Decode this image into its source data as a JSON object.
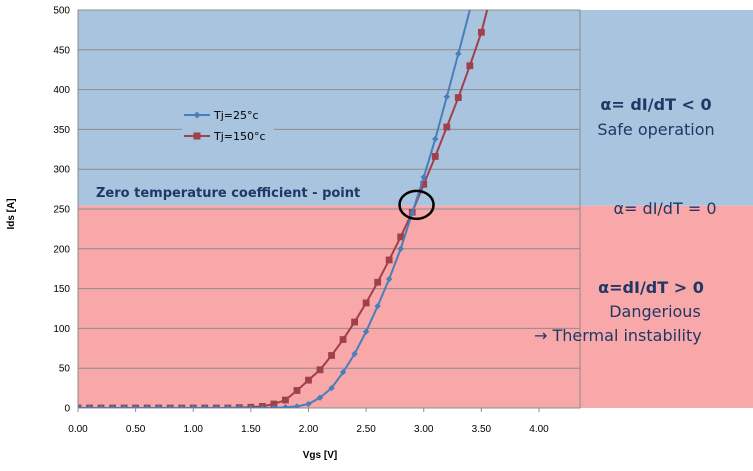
{
  "chart_data": {
    "type": "line",
    "xlabel": "Vgs [V]",
    "ylabel": "Ids [A]",
    "xlim": [
      0,
      4
    ],
    "ylim": [
      0,
      500
    ],
    "x_ticks": [
      "0.00",
      "0.50",
      "1.00",
      "1.50",
      "2.00",
      "2.50",
      "3.00",
      "3.50",
      "4.00"
    ],
    "y_ticks": [
      "0",
      "50",
      "100",
      "150",
      "200",
      "250",
      "300",
      "350",
      "400",
      "450",
      "500"
    ],
    "grid": "horizontal",
    "legend_position": "upper-left",
    "series": [
      {
        "name": "Tj=25°c",
        "color": "#4a7ebb",
        "marker": "diamond",
        "x": [
          0.0,
          0.1,
          0.2,
          0.3,
          0.4,
          0.5,
          0.6,
          0.7,
          0.8,
          0.9,
          1.0,
          1.1,
          1.2,
          1.3,
          1.4,
          1.5,
          1.6,
          1.7,
          1.8,
          1.9,
          2.0,
          2.1,
          2.2,
          2.3,
          2.4,
          2.5,
          2.6,
          2.7,
          2.8,
          2.9,
          3.0,
          3.1,
          3.2,
          3.3,
          3.4
        ],
        "y": [
          0,
          0,
          0,
          0,
          0,
          0,
          0,
          0,
          0,
          0,
          0,
          0,
          0,
          0,
          0,
          0,
          0,
          0,
          1,
          2,
          5,
          13,
          25,
          45,
          68,
          96,
          128,
          162,
          200,
          245,
          290,
          338,
          391,
          445,
          500
        ]
      },
      {
        "name": "Tj=150°c",
        "color": "#a0404a",
        "marker": "square",
        "x": [
          0.0,
          0.1,
          0.2,
          0.3,
          0.4,
          0.5,
          0.6,
          0.7,
          0.8,
          0.9,
          1.0,
          1.1,
          1.2,
          1.3,
          1.4,
          1.5,
          1.6,
          1.7,
          1.8,
          1.9,
          2.0,
          2.1,
          2.2,
          2.3,
          2.4,
          2.5,
          2.6,
          2.7,
          2.8,
          2.9,
          3.0,
          3.1,
          3.2,
          3.3,
          3.4,
          3.5,
          3.55
        ],
        "y": [
          0,
          0,
          0,
          0,
          0,
          0,
          0,
          0,
          0,
          0,
          0,
          0,
          0,
          0,
          0.5,
          1,
          2,
          5,
          10,
          22,
          35,
          48,
          66,
          86,
          108,
          132,
          158,
          186,
          215,
          246,
          281,
          316,
          353,
          390,
          430,
          472,
          500
        ]
      }
    ],
    "regions": [
      {
        "y_from": 254,
        "y_to": 500,
        "color": "#a9c4de"
      },
      {
        "y_from": 0,
        "y_to": 254,
        "color": "#f8a8a8"
      }
    ],
    "zero_tc_point": {
      "x": 2.92,
      "y": 254
    },
    "annotations": {
      "ztc_label": "Zero temperature coefficient - point",
      "safe_formula": "α= dI/dT < 0",
      "safe_text": "Safe operation",
      "zero_formula": "α= dI/dT = 0",
      "danger_formula": "α=dI/dT > 0",
      "danger_text": "Dangerious",
      "danger_text2": "→ Thermal instability"
    }
  }
}
